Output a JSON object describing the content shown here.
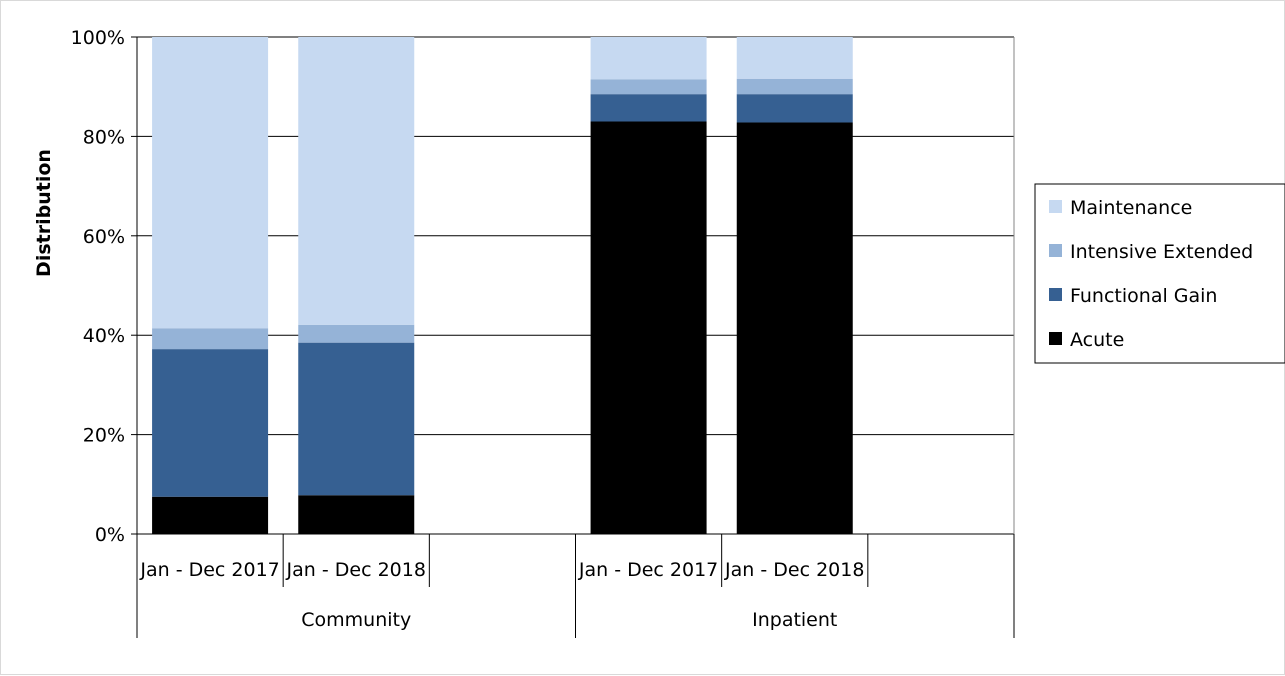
{
  "chart_data": {
    "type": "bar",
    "stacked": true,
    "percent_stacked": true,
    "title": "",
    "xlabel": "",
    "ylabel": "Distribution",
    "ylim": [
      0,
      100
    ],
    "yticks": [
      "0%",
      "20%",
      "40%",
      "60%",
      "80%",
      "100%"
    ],
    "grid": true,
    "legend_position": "right",
    "groups": [
      {
        "name": "Community",
        "categories": [
          "Jan - Dec 2017",
          "Jan - Dec 2018"
        ]
      },
      {
        "name": "Inpatient",
        "categories": [
          "Jan - Dec 2017",
          "Jan - Dec 2018"
        ]
      }
    ],
    "series": [
      {
        "name": "Acute",
        "color": "#000000",
        "values": [
          7.5,
          7.8,
          83.0,
          82.8
        ]
      },
      {
        "name": "Functional Gain",
        "color": "#366092",
        "values": [
          29.7,
          30.7,
          5.5,
          5.7
        ]
      },
      {
        "name": "Intensive Extended",
        "color": "#95b3d7",
        "values": [
          4.2,
          3.6,
          3.0,
          3.1
        ]
      },
      {
        "name": "Maintenance",
        "color": "#c6d9f1",
        "values": [
          58.6,
          57.9,
          8.5,
          8.4
        ]
      }
    ]
  }
}
